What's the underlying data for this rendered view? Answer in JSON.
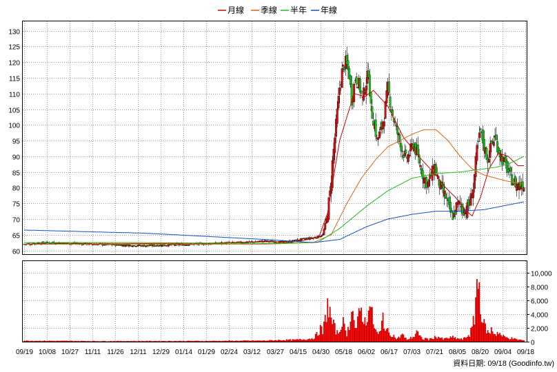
{
  "chart_data": {
    "type": "candlestick-with-volume",
    "legend": [
      {
        "label": "月線",
        "color": "#d40000"
      },
      {
        "label": "季線",
        "color": "#e06010"
      },
      {
        "label": "半年",
        "color": "#18c018"
      },
      {
        "label": "年線",
        "color": "#1050c8"
      }
    ],
    "price_axis": {
      "ticks": [
        60,
        65,
        70,
        75,
        80,
        85,
        90,
        95,
        100,
        105,
        110,
        115,
        120,
        125,
        130
      ],
      "ylim": [
        58.8,
        133
      ]
    },
    "volume_axis": {
      "ticks": [
        "0",
        "2,000",
        "4,000",
        "6,000",
        "8,000",
        "10,000"
      ],
      "values": [
        0,
        2000,
        4000,
        6000,
        8000,
        10000
      ],
      "ylim": [
        0,
        11700
      ]
    },
    "x_labels": [
      "09/19",
      "10/08",
      "10/27",
      "11/11",
      "11/26",
      "12/11",
      "12/29",
      "01/14",
      "01/29",
      "02/24",
      "03/12",
      "03/27",
      "04/15",
      "04/30",
      "05/18",
      "06/02",
      "06/17",
      "07/03",
      "07/21",
      "08/05",
      "08/20",
      "09/04",
      "09/18"
    ],
    "price_key": [
      [
        0,
        62
      ],
      [
        20,
        62.5
      ],
      [
        60,
        62
      ],
      [
        100,
        61.5
      ],
      [
        140,
        62
      ],
      [
        180,
        62.5
      ],
      [
        200,
        63
      ],
      [
        216,
        62.5
      ],
      [
        230,
        63.5
      ],
      [
        240,
        64
      ],
      [
        245,
        64.5
      ],
      [
        248,
        65
      ],
      [
        251,
        70
      ],
      [
        254,
        78
      ],
      [
        256,
        88
      ],
      [
        259,
        100
      ],
      [
        262,
        112
      ],
      [
        264,
        117
      ],
      [
        267,
        120
      ],
      [
        270,
        116
      ],
      [
        272,
        108
      ],
      [
        275,
        115
      ],
      [
        278,
        113
      ],
      [
        281,
        108
      ],
      [
        283,
        112
      ],
      [
        286,
        117
      ],
      [
        288,
        105
      ],
      [
        291,
        100
      ],
      [
        293,
        95
      ],
      [
        296,
        98
      ],
      [
        299,
        103
      ],
      [
        302,
        112
      ],
      [
        305,
        105
      ],
      [
        308,
        100
      ],
      [
        311,
        96
      ],
      [
        314,
        92
      ],
      [
        317,
        89
      ],
      [
        320,
        91
      ],
      [
        323,
        94
      ],
      [
        326,
        91
      ],
      [
        329,
        87
      ],
      [
        332,
        83
      ],
      [
        335,
        81
      ],
      [
        338,
        84
      ],
      [
        341,
        87
      ],
      [
        344,
        82
      ],
      [
        347,
        79
      ],
      [
        350,
        77
      ],
      [
        353,
        73
      ],
      [
        356,
        70
      ],
      [
        359,
        74
      ],
      [
        362,
        75
      ],
      [
        364,
        73
      ],
      [
        367,
        73
      ],
      [
        370,
        75
      ],
      [
        373,
        80
      ],
      [
        376,
        92
      ],
      [
        379,
        98
      ],
      [
        382,
        93
      ],
      [
        385,
        89
      ],
      [
        388,
        94
      ],
      [
        391,
        96
      ],
      [
        394,
        92
      ],
      [
        397,
        89
      ],
      [
        400,
        87
      ],
      [
        403,
        84
      ],
      [
        406,
        82
      ],
      [
        409,
        81
      ],
      [
        412,
        81
      ],
      [
        415,
        81
      ]
    ],
    "ma_month": [
      [
        0,
        62
      ],
      [
        150,
        62.3
      ],
      [
        230,
        63
      ],
      [
        245,
        64.5
      ],
      [
        252,
        72
      ],
      [
        262,
        95
      ],
      [
        274,
        110
      ],
      [
        283,
        109
      ],
      [
        290,
        111
      ],
      [
        302,
        106
      ],
      [
        315,
        96
      ],
      [
        330,
        89
      ],
      [
        342,
        84
      ],
      [
        350,
        80
      ],
      [
        358,
        77
      ],
      [
        366,
        73
      ],
      [
        372,
        71
      ],
      [
        379,
        77
      ],
      [
        386,
        86
      ],
      [
        394,
        91
      ],
      [
        402,
        90
      ],
      [
        410,
        87
      ],
      [
        415,
        87
      ]
    ],
    "ma_quarter": [
      [
        0,
        62
      ],
      [
        200,
        62
      ],
      [
        240,
        62.5
      ],
      [
        255,
        65
      ],
      [
        268,
        75
      ],
      [
        280,
        83
      ],
      [
        292,
        89
      ],
      [
        302,
        93
      ],
      [
        312,
        95
      ],
      [
        322,
        97
      ],
      [
        332,
        98.5
      ],
      [
        342,
        98.5
      ],
      [
        352,
        95
      ],
      [
        362,
        90
      ],
      [
        372,
        86
      ],
      [
        382,
        84
      ],
      [
        392,
        83
      ],
      [
        402,
        82
      ],
      [
        412,
        81.5
      ],
      [
        415,
        81
      ]
    ],
    "ma_half": [
      [
        0,
        62.5
      ],
      [
        100,
        62.5
      ],
      [
        200,
        62.2
      ],
      [
        244,
        62.6
      ],
      [
        262,
        67
      ],
      [
        284,
        74
      ],
      [
        302,
        79
      ],
      [
        322,
        83
      ],
      [
        342,
        84.5
      ],
      [
        362,
        85
      ],
      [
        382,
        86
      ],
      [
        392,
        86.5
      ],
      [
        402,
        87.5
      ],
      [
        410,
        89
      ],
      [
        415,
        90
      ]
    ],
    "ma_year": [
      [
        0,
        66.5
      ],
      [
        100,
        65.5
      ],
      [
        200,
        63.5
      ],
      [
        240,
        62.5
      ],
      [
        262,
        63.5
      ],
      [
        284,
        67.5
      ],
      [
        302,
        70
      ],
      [
        322,
        71.5
      ],
      [
        342,
        72.5
      ],
      [
        362,
        72.5
      ],
      [
        382,
        73
      ],
      [
        402,
        74.5
      ],
      [
        415,
        75.5
      ]
    ],
    "volume_spikes": [
      [
        0,
        160
      ],
      [
        60,
        100
      ],
      [
        150,
        120
      ],
      [
        200,
        180
      ],
      [
        215,
        280
      ],
      [
        225,
        300
      ],
      [
        236,
        450
      ],
      [
        240,
        600
      ],
      [
        244,
        1300
      ],
      [
        246,
        2200
      ],
      [
        248,
        1500
      ],
      [
        250,
        3500
      ],
      [
        252,
        6200
      ],
      [
        254,
        4500
      ],
      [
        256,
        3000
      ],
      [
        258,
        2200
      ],
      [
        260,
        1400
      ],
      [
        262,
        1700
      ],
      [
        264,
        3800
      ],
      [
        266,
        2200
      ],
      [
        268,
        1400
      ],
      [
        270,
        2500
      ],
      [
        272,
        6800
      ],
      [
        274,
        3200
      ],
      [
        276,
        1800
      ],
      [
        278,
        4200
      ],
      [
        280,
        5300
      ],
      [
        282,
        3800
      ],
      [
        284,
        2600
      ],
      [
        286,
        7000
      ],
      [
        288,
        5000
      ],
      [
        290,
        3200
      ],
      [
        292,
        1700
      ],
      [
        294,
        1200
      ],
      [
        296,
        1500
      ],
      [
        298,
        4300
      ],
      [
        300,
        2200
      ],
      [
        302,
        1600
      ],
      [
        304,
        1300
      ],
      [
        306,
        1200
      ],
      [
        308,
        700
      ],
      [
        310,
        500
      ],
      [
        312,
        800
      ],
      [
        314,
        1300
      ],
      [
        316,
        600
      ],
      [
        318,
        400
      ],
      [
        320,
        500
      ],
      [
        322,
        700
      ],
      [
        324,
        900
      ],
      [
        326,
        1800
      ],
      [
        328,
        900
      ],
      [
        330,
        600
      ],
      [
        332,
        400
      ],
      [
        334,
        600
      ],
      [
        336,
        300
      ],
      [
        338,
        500
      ],
      [
        340,
        700
      ],
      [
        344,
        800
      ],
      [
        348,
        400
      ],
      [
        352,
        600
      ],
      [
        356,
        700
      ],
      [
        360,
        500
      ],
      [
        364,
        400
      ],
      [
        366,
        600
      ],
      [
        368,
        900
      ],
      [
        370,
        1200
      ],
      [
        372,
        2200
      ],
      [
        374,
        3800
      ],
      [
        376,
        10000
      ],
      [
        377,
        9000
      ],
      [
        378,
        8600
      ],
      [
        379,
        7000
      ],
      [
        380,
        4200
      ],
      [
        382,
        2700
      ],
      [
        384,
        2000
      ],
      [
        386,
        1200
      ],
      [
        388,
        2000
      ],
      [
        390,
        1500
      ],
      [
        392,
        1200
      ],
      [
        394,
        1700
      ],
      [
        396,
        1000
      ],
      [
        400,
        700
      ],
      [
        404,
        600
      ],
      [
        408,
        400
      ],
      [
        412,
        300
      ],
      [
        415,
        200
      ]
    ],
    "source_text": "資料日期: 09/18  (Goodinfo.tw)"
  }
}
